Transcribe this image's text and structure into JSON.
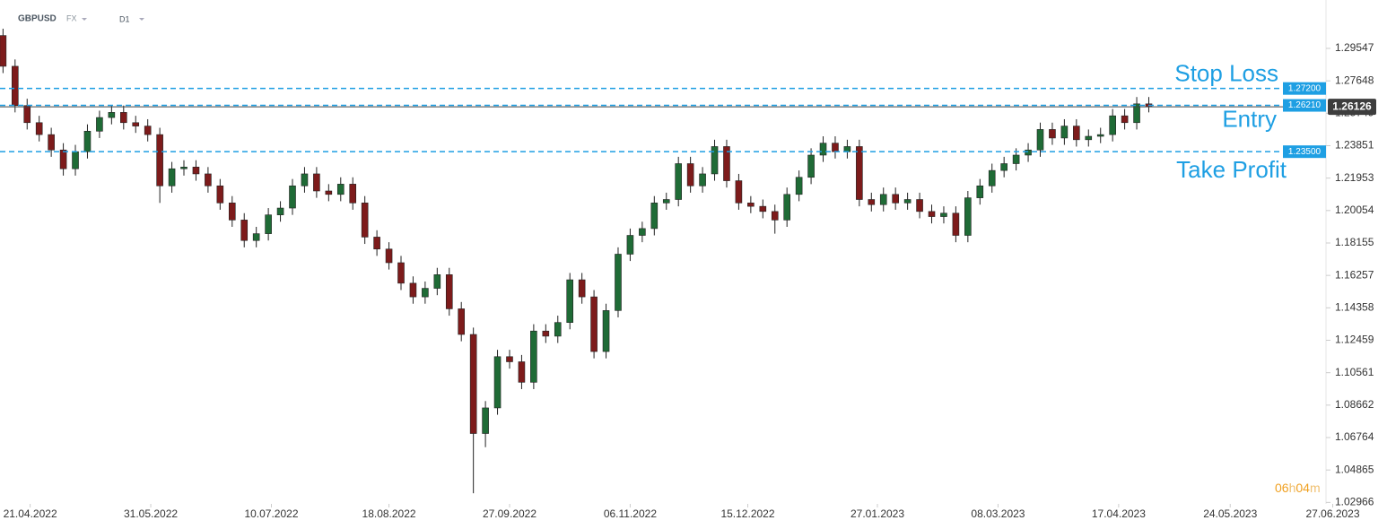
{
  "chart_data": {
    "type": "candlestick",
    "symbol": "GBPUSD",
    "market": "FX",
    "timeframe": "D1",
    "x": [
      "2022-04-12",
      "2022-04-16",
      "2022-04-20",
      "2022-04-24",
      "2022-04-28",
      "2022-05-02",
      "2022-05-06",
      "2022-05-10",
      "2022-05-14",
      "2022-05-18",
      "2022-05-22",
      "2022-05-26",
      "2022-05-30",
      "2022-06-03",
      "2022-06-07",
      "2022-06-11",
      "2022-06-15",
      "2022-06-19",
      "2022-06-23",
      "2022-06-27",
      "2022-07-01",
      "2022-07-05",
      "2022-07-09",
      "2022-07-13",
      "2022-07-17",
      "2022-07-21",
      "2022-07-25",
      "2022-07-29",
      "2022-08-02",
      "2022-08-06",
      "2022-08-10",
      "2022-08-14",
      "2022-08-18",
      "2022-08-22",
      "2022-08-26",
      "2022-08-30",
      "2022-09-03",
      "2022-09-07",
      "2022-09-11",
      "2022-09-15",
      "2022-09-19",
      "2022-09-23",
      "2022-09-27",
      "2022-10-01",
      "2022-10-05",
      "2022-10-09",
      "2022-10-13",
      "2022-10-17",
      "2022-10-21",
      "2022-10-25",
      "2022-10-29",
      "2022-11-02",
      "2022-11-06",
      "2022-11-10",
      "2022-11-14",
      "2022-11-18",
      "2022-11-22",
      "2022-11-26",
      "2022-11-30",
      "2022-12-04",
      "2022-12-08",
      "2022-12-12",
      "2022-12-16",
      "2022-12-20",
      "2022-12-24",
      "2022-12-28",
      "2023-01-01",
      "2023-01-05",
      "2023-01-09",
      "2023-01-13",
      "2023-01-17",
      "2023-01-21",
      "2023-01-25",
      "2023-01-29",
      "2023-02-02",
      "2023-02-06",
      "2023-02-10",
      "2023-02-14",
      "2023-02-18",
      "2023-02-22",
      "2023-02-26",
      "2023-03-02",
      "2023-03-06",
      "2023-03-10",
      "2023-03-14",
      "2023-03-18",
      "2023-03-22",
      "2023-03-26",
      "2023-03-30",
      "2023-04-03",
      "2023-04-07",
      "2023-04-11",
      "2023-04-15",
      "2023-04-19",
      "2023-04-23",
      "2023-04-27"
    ],
    "open": [
      1.303,
      1.285,
      1.262,
      1.252,
      1.245,
      1.236,
      1.225,
      1.235,
      1.247,
      1.255,
      1.258,
      1.252,
      1.25,
      1.245,
      1.215,
      1.225,
      1.226,
      1.222,
      1.215,
      1.205,
      1.195,
      1.183,
      1.187,
      1.198,
      1.202,
      1.215,
      1.222,
      1.212,
      1.21,
      1.216,
      1.205,
      1.185,
      1.178,
      1.17,
      1.158,
      1.15,
      1.155,
      1.163,
      1.143,
      1.128,
      1.07,
      1.085,
      1.115,
      1.112,
      1.1,
      1.13,
      1.127,
      1.135,
      1.16,
      1.15,
      1.118,
      1.142,
      1.175,
      1.186,
      1.19,
      1.205,
      1.207,
      1.228,
      1.215,
      1.222,
      1.238,
      1.218,
      1.205,
      1.203,
      1.2,
      1.195,
      1.21,
      1.22,
      1.233,
      1.24,
      1.235,
      1.238,
      1.207,
      1.204,
      1.21,
      1.205,
      1.207,
      1.2,
      1.197,
      1.199,
      1.186,
      1.208,
      1.215,
      1.224,
      1.228,
      1.233,
      1.236,
      1.248,
      1.243,
      1.25,
      1.242,
      1.244,
      1.245,
      1.256,
      1.252,
      1.263
    ],
    "high": [
      1.307,
      1.289,
      1.266,
      1.256,
      1.249,
      1.24,
      1.239,
      1.251,
      1.259,
      1.262,
      1.262,
      1.256,
      1.254,
      1.249,
      1.229,
      1.23,
      1.23,
      1.226,
      1.219,
      1.209,
      1.199,
      1.191,
      1.202,
      1.206,
      1.219,
      1.226,
      1.226,
      1.216,
      1.22,
      1.22,
      1.209,
      1.189,
      1.182,
      1.174,
      1.162,
      1.159,
      1.167,
      1.167,
      1.147,
      1.132,
      1.089,
      1.119,
      1.119,
      1.116,
      1.134,
      1.134,
      1.139,
      1.164,
      1.164,
      1.154,
      1.146,
      1.179,
      1.19,
      1.194,
      1.209,
      1.211,
      1.232,
      1.232,
      1.226,
      1.242,
      1.242,
      1.222,
      1.209,
      1.207,
      1.204,
      1.214,
      1.224,
      1.237,
      1.244,
      1.244,
      1.242,
      1.242,
      1.211,
      1.214,
      1.214,
      1.211,
      1.211,
      1.204,
      1.203,
      1.203,
      1.212,
      1.219,
      1.228,
      1.232,
      1.237,
      1.24,
      1.252,
      1.252,
      1.254,
      1.254,
      1.248,
      1.249,
      1.26,
      1.26,
      1.267,
      1.267
    ],
    "low": [
      1.281,
      1.258,
      1.248,
      1.241,
      1.232,
      1.221,
      1.221,
      1.231,
      1.243,
      1.251,
      1.248,
      1.246,
      1.241,
      1.205,
      1.211,
      1.221,
      1.218,
      1.211,
      1.201,
      1.191,
      1.179,
      1.179,
      1.183,
      1.194,
      1.198,
      1.211,
      1.208,
      1.206,
      1.206,
      1.201,
      1.181,
      1.174,
      1.166,
      1.154,
      1.146,
      1.146,
      1.151,
      1.139,
      1.124,
      1.035,
      1.062,
      1.081,
      1.108,
      1.096,
      1.096,
      1.123,
      1.123,
      1.131,
      1.146,
      1.114,
      1.114,
      1.138,
      1.171,
      1.182,
      1.186,
      1.201,
      1.203,
      1.211,
      1.211,
      1.218,
      1.214,
      1.201,
      1.199,
      1.196,
      1.187,
      1.191,
      1.206,
      1.216,
      1.229,
      1.231,
      1.231,
      1.203,
      1.2,
      1.2,
      1.201,
      1.201,
      1.196,
      1.193,
      1.193,
      1.182,
      1.182,
      1.204,
      1.211,
      1.22,
      1.224,
      1.229,
      1.232,
      1.239,
      1.239,
      1.238,
      1.238,
      1.24,
      1.241,
      1.248,
      1.248,
      1.258
    ],
    "close": [
      1.285,
      1.262,
      1.252,
      1.245,
      1.236,
      1.225,
      1.235,
      1.247,
      1.255,
      1.258,
      1.252,
      1.25,
      1.245,
      1.215,
      1.225,
      1.226,
      1.222,
      1.215,
      1.205,
      1.195,
      1.183,
      1.187,
      1.198,
      1.202,
      1.215,
      1.222,
      1.212,
      1.21,
      1.216,
      1.205,
      1.185,
      1.178,
      1.17,
      1.158,
      1.15,
      1.155,
      1.163,
      1.143,
      1.128,
      1.07,
      1.085,
      1.115,
      1.112,
      1.1,
      1.13,
      1.127,
      1.135,
      1.16,
      1.15,
      1.118,
      1.142,
      1.175,
      1.186,
      1.19,
      1.205,
      1.207,
      1.228,
      1.215,
      1.222,
      1.238,
      1.218,
      1.205,
      1.203,
      1.2,
      1.195,
      1.21,
      1.22,
      1.233,
      1.24,
      1.235,
      1.238,
      1.207,
      1.204,
      1.21,
      1.205,
      1.207,
      1.2,
      1.197,
      1.199,
      1.186,
      1.208,
      1.215,
      1.224,
      1.228,
      1.233,
      1.236,
      1.248,
      1.243,
      1.25,
      1.242,
      1.244,
      1.245,
      1.256,
      1.252,
      1.263,
      1.26126
    ],
    "up_color": "#1f6b36",
    "down_color": "#7d1b1b",
    "xlim": [
      "2022-04-11",
      "2023-07-15"
    ],
    "xticks": [
      {
        "value": "2022-04-21",
        "label": "21.04.2022"
      },
      {
        "value": "2022-05-31",
        "label": "31.05.2022"
      },
      {
        "value": "2022-07-10",
        "label": "10.07.2022"
      },
      {
        "value": "2022-08-18",
        "label": "18.08.2022"
      },
      {
        "value": "2022-09-27",
        "label": "27.09.2022"
      },
      {
        "value": "2022-11-06",
        "label": "06.11.2022"
      },
      {
        "value": "2022-12-15",
        "label": "15.12.2022"
      },
      {
        "value": "2023-01-27",
        "label": "27.01.2023"
      },
      {
        "value": "2023-03-08",
        "label": "08.03.2023"
      },
      {
        "value": "2023-04-17",
        "label": "17.04.2023"
      },
      {
        "value": "2023-05-24",
        "label": "24.05.2023"
      },
      {
        "value": "2023-06-27",
        "label": "27.06.2023"
      }
    ],
    "ylim": [
      1.0246,
      1.3238
    ],
    "yticks": [
      1.29547,
      1.27648,
      1.25749,
      1.23851,
      1.21953,
      1.20054,
      1.18155,
      1.16257,
      1.14358,
      1.12459,
      1.10561,
      1.08662,
      1.06764,
      1.04865,
      1.02966
    ],
    "levels": [
      {
        "name": "Stop Loss",
        "value": 1.272,
        "label": "1.27200"
      },
      {
        "name": "Entry",
        "value": 1.2621,
        "label": "1.26210"
      },
      {
        "name": "Take Profit",
        "value": 1.235,
        "label": "1.23500"
      }
    ],
    "level_color": "#1e9fe3",
    "last_price": {
      "value": 1.26126,
      "label": "1.26126"
    },
    "timer": [
      "06",
      "h",
      "04",
      "m"
    ]
  }
}
